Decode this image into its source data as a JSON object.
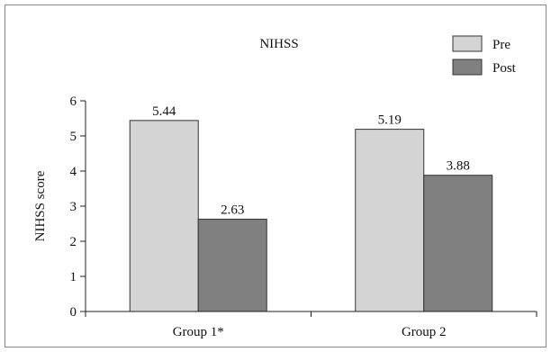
{
  "chart_data": {
    "type": "bar",
    "title": "NIHSS",
    "ylabel": "NIHSS score",
    "xlabel": "",
    "ylim": [
      0,
      6
    ],
    "yticks": [
      0,
      1,
      2,
      3,
      4,
      5,
      6
    ],
    "categories": [
      "Group 1*",
      "Group 2"
    ],
    "series": [
      {
        "name": "Pre",
        "values": [
          5.44,
          5.19
        ],
        "color": "#d4d4d4"
      },
      {
        "name": "Post",
        "values": [
          2.63,
          3.88
        ],
        "color": "#808080"
      }
    ],
    "data_labels": [
      [
        "5.44",
        "5.19"
      ],
      [
        "2.63",
        "3.88"
      ]
    ],
    "grid": false,
    "legend_position": "top-right",
    "colors": {
      "outline": "#333333",
      "frame": "#888888",
      "axis": "#222222"
    }
  }
}
